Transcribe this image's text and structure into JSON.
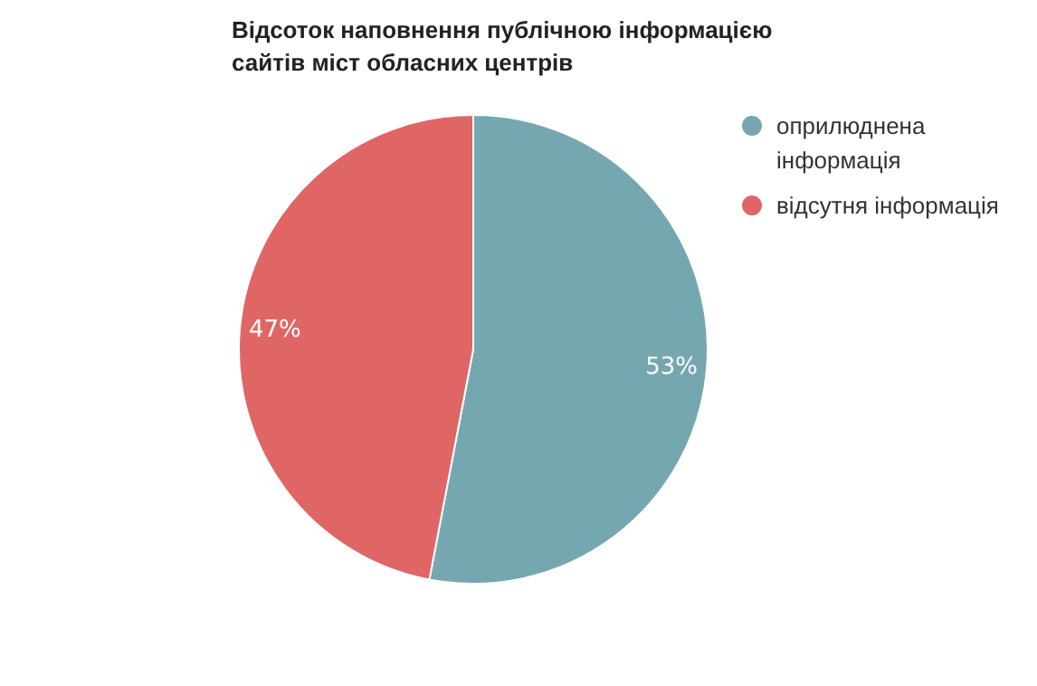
{
  "chart_data": {
    "type": "pie",
    "title": "Відсоток наповнення публічною інформацією сайтів міст обласних центрів",
    "categories": [
      "оприлюднена інформація",
      "відсутня інформація"
    ],
    "values": [
      53,
      47
    ],
    "colors": [
      "#75a7b0",
      "#e06666"
    ],
    "value_labels": [
      "53%",
      "47%"
    ],
    "legend": "top right"
  }
}
